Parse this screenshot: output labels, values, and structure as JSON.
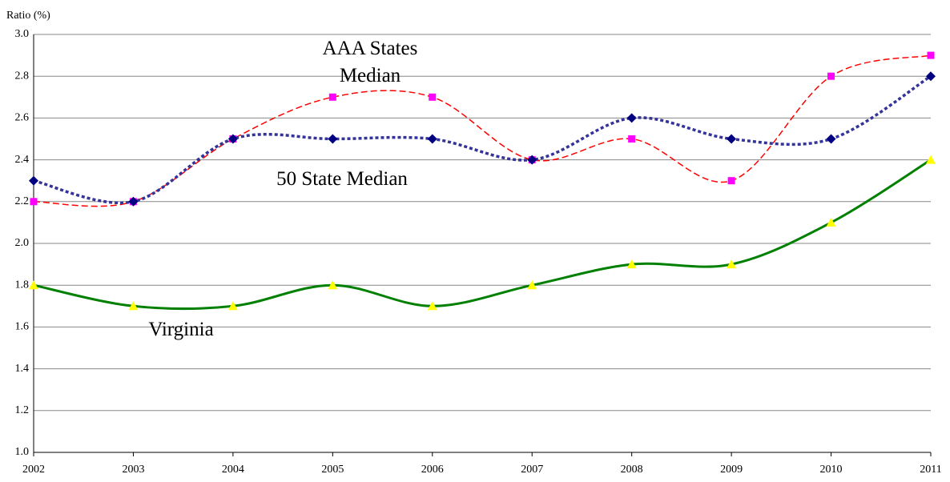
{
  "chart_data": {
    "type": "line",
    "y_label": "Ratio (%)",
    "categories": [
      "2002",
      "2003",
      "2004",
      "2005",
      "2006",
      "2007",
      "2008",
      "2009",
      "2010",
      "2011"
    ],
    "series": [
      {
        "name": "AAA States Median",
        "color": "#ff0000",
        "marker_color": "#ff00ff",
        "marker": "square",
        "line_style": "dashed",
        "values": [
          2.2,
          2.2,
          2.5,
          2.7,
          2.7,
          2.4,
          2.5,
          2.3,
          2.8,
          2.9
        ]
      },
      {
        "name": "50 State Median",
        "color": "#333399",
        "marker_color": "#000080",
        "marker": "diamond",
        "line_style": "dotted",
        "values": [
          2.3,
          2.2,
          2.5,
          2.5,
          2.5,
          2.4,
          2.6,
          2.5,
          2.5,
          2.8
        ]
      },
      {
        "name": "Virginia",
        "color": "#008000",
        "marker_color": "#ffff00",
        "marker": "triangle",
        "line_style": "solid",
        "values": [
          1.8,
          1.7,
          1.7,
          1.8,
          1.7,
          1.8,
          1.9,
          1.9,
          2.1,
          2.4
        ]
      }
    ],
    "ylim": [
      1.0,
      3.0
    ],
    "yticks": [
      {
        "value": 1.0,
        "label": "1.0"
      },
      1.2,
      1.4,
      1.6,
      1.8,
      {
        "value": 2.0,
        "label": "2.0"
      },
      2.2,
      2.4,
      2.6,
      2.8,
      {
        "value": 3.0,
        "label": "3.0"
      }
    ],
    "grid": true,
    "smooth": true
  }
}
